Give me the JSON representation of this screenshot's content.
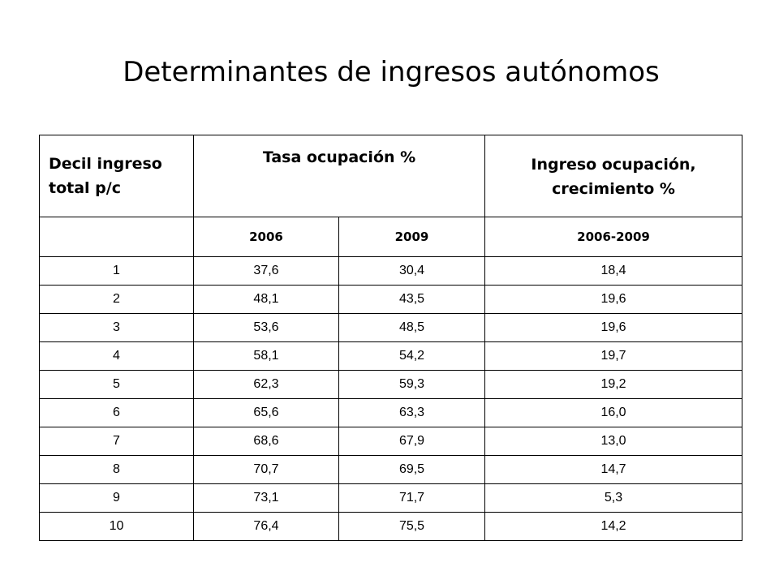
{
  "slide": {
    "title": "Determinantes de ingresos autónomos"
  },
  "table": {
    "headers": {
      "decile": "Decil ingreso total p/c",
      "employment_rate": "Tasa ocupación %",
      "income_growth": "Ingreso  ocupación, crecimiento %"
    },
    "subheaders": {
      "decile": "",
      "year_2006": "2006",
      "year_2009": "2009",
      "period": "2006-2009"
    },
    "rows": [
      {
        "decile": "1",
        "rate_2006": "37,6",
        "rate_2009": "30,4",
        "growth": "18,4"
      },
      {
        "decile": "2",
        "rate_2006": "48,1",
        "rate_2009": "43,5",
        "growth": "19,6"
      },
      {
        "decile": "3",
        "rate_2006": "53,6",
        "rate_2009": "48,5",
        "growth": "19,6"
      },
      {
        "decile": "4",
        "rate_2006": "58,1",
        "rate_2009": "54,2",
        "growth": "19,7"
      },
      {
        "decile": "5",
        "rate_2006": "62,3",
        "rate_2009": "59,3",
        "growth": "19,2"
      },
      {
        "decile": "6",
        "rate_2006": "65,6",
        "rate_2009": "63,3",
        "growth": "16,0"
      },
      {
        "decile": "7",
        "rate_2006": "68,6",
        "rate_2009": "67,9",
        "growth": "13,0"
      },
      {
        "decile": "8",
        "rate_2006": "70,7",
        "rate_2009": "69,5",
        "growth": "14,7"
      },
      {
        "decile": "9",
        "rate_2006": "73,1",
        "rate_2009": "71,7",
        "growth": "5,3"
      },
      {
        "decile": "10",
        "rate_2006": "76,4",
        "rate_2009": "75,5",
        "growth": "14,2"
      }
    ]
  }
}
